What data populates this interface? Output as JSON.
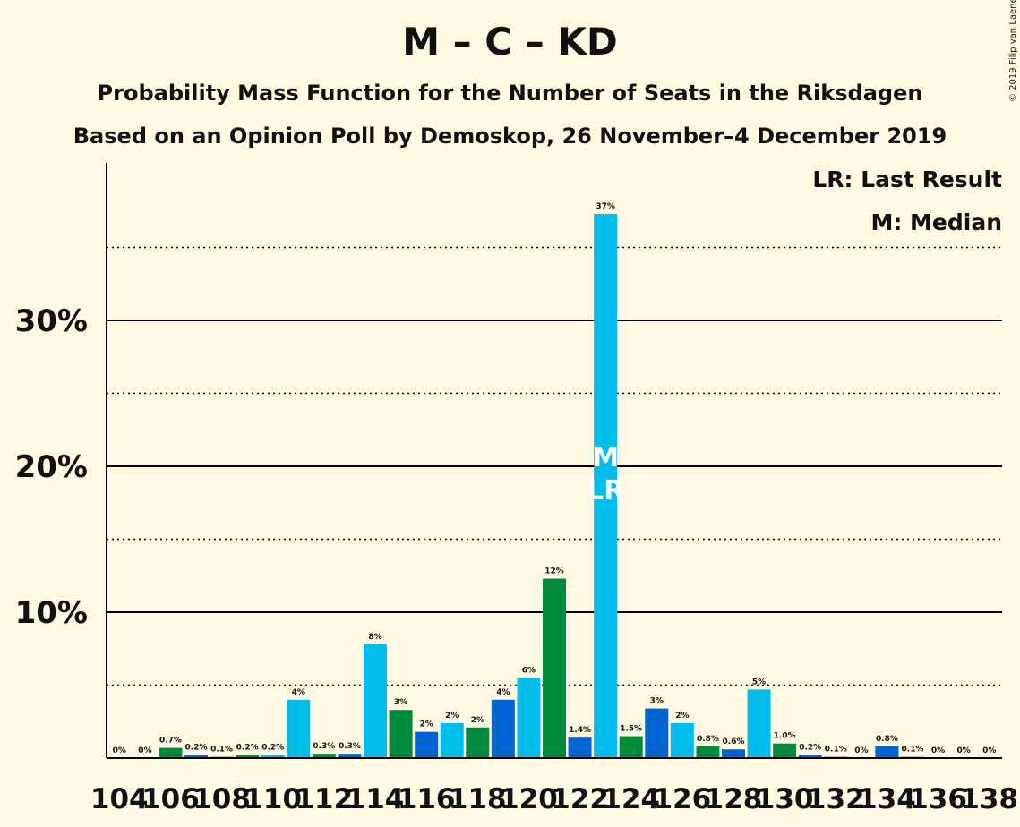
{
  "title": "M – C – KD",
  "subtitle1": "Probability Mass Function for the Number of Seats in the Riksdagen",
  "subtitle2": "Based on an Opinion Poll by Demoskop, 26 November–4 December 2019",
  "legend": {
    "last_result": "LR: Last Result",
    "median": "M: Median"
  },
  "copyright": "© 2019 Filip van Laenen",
  "colors": {
    "background": "#fff9e3",
    "m_light_blue": "#00bdec",
    "c_green": "#008a3e",
    "kd_blue": "#0065d1",
    "axis": "#000000"
  },
  "chart_data": {
    "type": "bar",
    "x": [
      104,
      105,
      106,
      107,
      108,
      109,
      110,
      111,
      112,
      113,
      114,
      115,
      116,
      117,
      118,
      119,
      120,
      121,
      122,
      123,
      124,
      125,
      126,
      127,
      128,
      129,
      130,
      131,
      132,
      133,
      134,
      135,
      136,
      137,
      138
    ],
    "values": [
      0,
      0,
      0.7,
      0.2,
      0.1,
      0.2,
      0.2,
      4.0,
      0.3,
      0.3,
      7.8,
      3.3,
      1.8,
      2.4,
      2.1,
      4.0,
      5.5,
      12.3,
      1.4,
      37.3,
      1.5,
      3.4,
      2.4,
      0.8,
      0.6,
      4.7,
      1.0,
      0.2,
      0.1,
      0,
      0.8,
      0.1,
      0,
      0,
      0
    ],
    "labels": [
      "0%",
      "0%",
      "0.7%",
      "0.2%",
      "0.1%",
      "0.2%",
      "0.2%",
      "4%",
      "0.3%",
      "0.3%",
      "8%",
      "3%",
      "2%",
      "2%",
      "2%",
      "4%",
      "6%",
      "12%",
      "1.4%",
      "37%",
      "1.5%",
      "3%",
      "2%",
      "0.8%",
      "0.6%",
      "5%",
      "1.0%",
      "0.2%",
      "0.1%",
      "0%",
      "0.8%",
      "0.1%",
      "0%",
      "0%",
      "0%"
    ],
    "bar_colors": [
      "#00bdec",
      "#0065d1",
      "#008a3e",
      "#0065d1",
      "#00bdec",
      "#008a3e",
      "#00bdec",
      "#00bdec",
      "#008a3e",
      "#0065d1",
      "#00bdec",
      "#008a3e",
      "#0065d1",
      "#00bdec",
      "#008a3e",
      "#0065d1",
      "#00bdec",
      "#008a3e",
      "#0065d1",
      "#00bdec",
      "#008a3e",
      "#0065d1",
      "#00bdec",
      "#008a3e",
      "#0065d1",
      "#00bdec",
      "#008a3e",
      "#0065d1",
      "#00bdec",
      "#008a3e",
      "#0065d1",
      "#00bdec",
      "#008a3e",
      "#0065d1",
      "#00bdec"
    ],
    "xtick_labels": [
      "104",
      "106",
      "108",
      "110",
      "112",
      "114",
      "116",
      "118",
      "120",
      "122",
      "124",
      "126",
      "128",
      "130",
      "132",
      "134",
      "136",
      "138"
    ],
    "ytick_labels": [
      "10%",
      "20%",
      "30%"
    ],
    "yticks": [
      10,
      20,
      30
    ],
    "minor_gridlines": [
      5,
      15,
      25,
      35
    ],
    "ylim": [
      0,
      40.6
    ],
    "median_seat": 123,
    "median_marker": "M",
    "last_result_seat": 123,
    "last_result_marker": "LR"
  }
}
